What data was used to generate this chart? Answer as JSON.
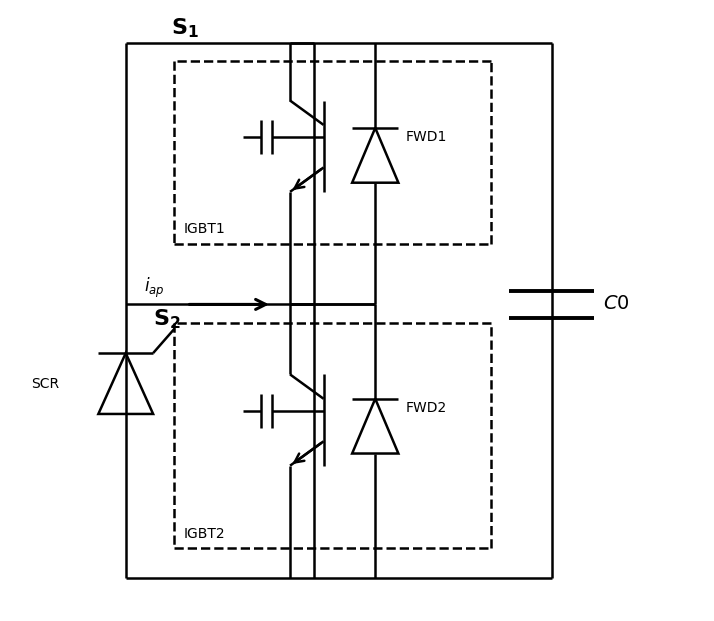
{
  "background_color": "#ffffff",
  "line_color": "#000000",
  "fig_width": 7.14,
  "fig_height": 6.21,
  "dpi": 100,
  "S1_label": "$\\mathbf{S_1}$",
  "S2_label": "$\\mathbf{S_2}$",
  "IGBT1_label": "IGBT1",
  "IGBT2_label": "IGBT2",
  "FWD1_label": "FWD1",
  "FWD2_label": "FWD2",
  "SCR_label": "SCR",
  "C0_label": "$C0$",
  "iap_label": "$i_{ap}$"
}
